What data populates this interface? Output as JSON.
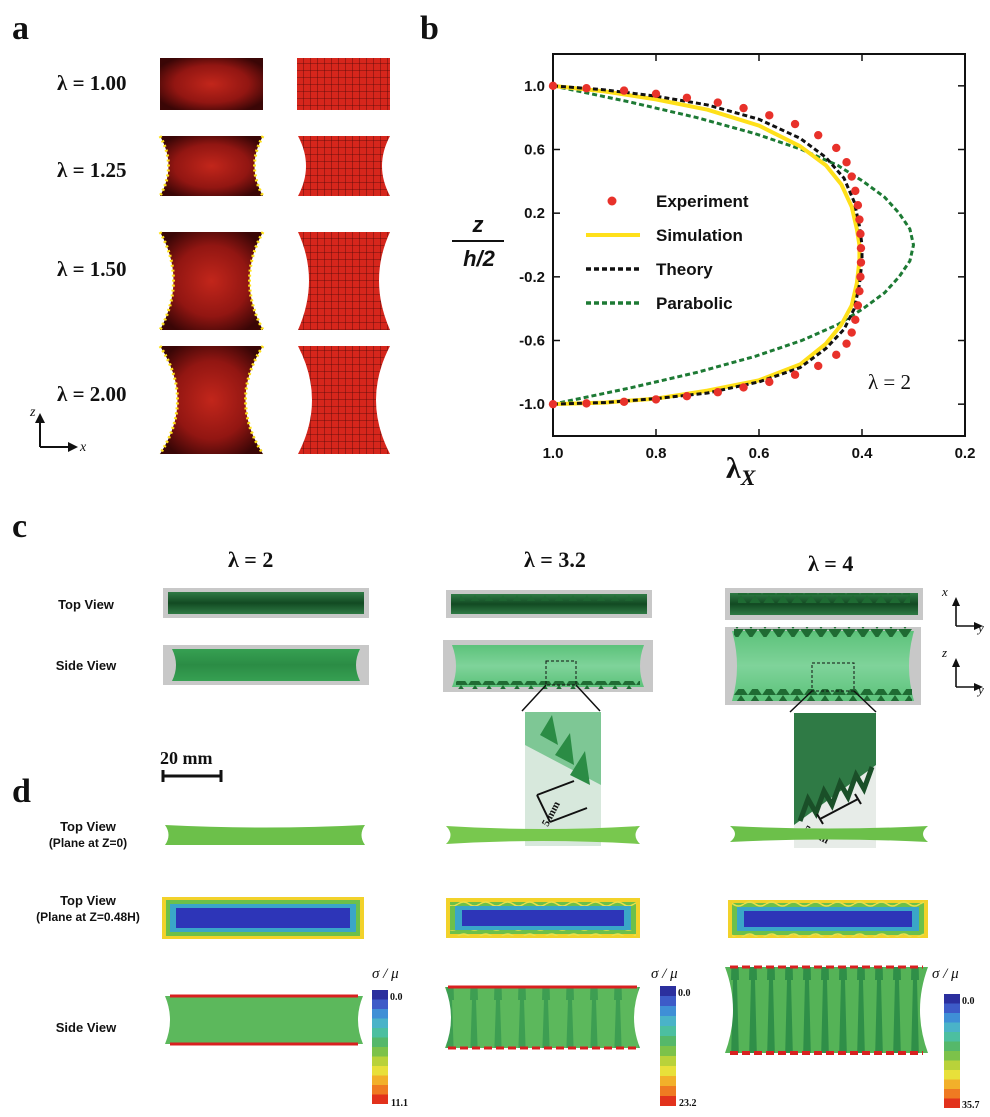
{
  "panels": {
    "a": "a",
    "b": "b",
    "c": "c",
    "d": "d"
  },
  "panel_a": {
    "lambdas": [
      "λ = 1.00",
      "λ = 1.25",
      "λ = 1.50",
      "λ = 2.00"
    ],
    "axis_z": "z",
    "axis_x": "x"
  },
  "chart_data": {
    "type": "line",
    "ylabel_num": "z",
    "ylabel_den": "h/2",
    "xlabel_main": "λ",
    "xlabel_sub": "X",
    "annotation": "λ = 2",
    "xlim": [
      1.0,
      0.2
    ],
    "ylim": [
      -1.2,
      1.2
    ],
    "xticks": [
      "1.0",
      "0.8",
      "0.6",
      "0.4",
      "0.2"
    ],
    "yticks": [
      "1.0",
      "0.6",
      "0.2",
      "-0.2",
      "-0.6",
      "-1.0"
    ],
    "legend_position": "center-left",
    "series": [
      {
        "name": "Experiment",
        "style": "markers",
        "color": "#e8312a",
        "x": [
          1.0,
          0.935,
          0.862,
          0.8,
          0.74,
          0.68,
          0.63,
          0.58,
          0.53,
          0.485,
          0.45,
          0.43,
          0.42,
          0.413,
          0.408,
          0.405,
          0.403,
          0.402,
          0.402,
          0.403,
          0.405,
          0.408,
          0.413,
          0.42,
          0.43,
          0.45,
          0.485,
          0.53,
          0.58,
          0.63,
          0.68,
          0.74,
          0.8,
          0.862,
          0.935,
          1.0
        ],
        "y": [
          1.0,
          0.985,
          0.97,
          0.95,
          0.925,
          0.895,
          0.86,
          0.815,
          0.76,
          0.69,
          0.61,
          0.52,
          0.43,
          0.34,
          0.25,
          0.16,
          0.07,
          -0.02,
          -0.11,
          -0.2,
          -0.29,
          -0.38,
          -0.47,
          -0.55,
          -0.62,
          -0.69,
          -0.76,
          -0.815,
          -0.86,
          -0.895,
          -0.925,
          -0.95,
          -0.97,
          -0.985,
          -0.995,
          -1.0
        ]
      },
      {
        "name": "Simulation",
        "style": "solid",
        "color": "#ffe01a",
        "x": [
          1.0,
          0.9,
          0.8,
          0.7,
          0.6,
          0.52,
          0.47,
          0.44,
          0.42,
          0.41,
          0.405,
          0.405,
          0.41,
          0.42,
          0.44,
          0.47,
          0.52,
          0.6,
          0.7,
          0.8,
          0.9,
          1.0
        ],
        "y": [
          1.0,
          0.965,
          0.915,
          0.85,
          0.75,
          0.62,
          0.5,
          0.38,
          0.24,
          0.1,
          0.0,
          -0.1,
          -0.24,
          -0.38,
          -0.5,
          -0.62,
          -0.75,
          -0.85,
          -0.915,
          -0.965,
          -0.99,
          -1.0
        ]
      },
      {
        "name": "Theory",
        "style": "dashed",
        "color": "#111111",
        "x": [
          1.0,
          0.9,
          0.8,
          0.7,
          0.6,
          0.52,
          0.47,
          0.435,
          0.415,
          0.405,
          0.4,
          0.4,
          0.405,
          0.415,
          0.435,
          0.47,
          0.52,
          0.6,
          0.7,
          0.8,
          0.9,
          1.0
        ],
        "y": [
          1.0,
          0.975,
          0.935,
          0.88,
          0.79,
          0.67,
          0.55,
          0.42,
          0.27,
          0.12,
          0.0,
          -0.1,
          -0.25,
          -0.4,
          -0.53,
          -0.65,
          -0.77,
          -0.86,
          -0.93,
          -0.965,
          -0.99,
          -1.0
        ]
      },
      {
        "name": "Parabolic",
        "style": "dashed",
        "color": "#1d7a34",
        "x": [
          1.0,
          0.853,
          0.72,
          0.608,
          0.517,
          0.447,
          0.398,
          0.356,
          0.328,
          0.307,
          0.3,
          0.307,
          0.328,
          0.356,
          0.398,
          0.447,
          0.517,
          0.608,
          0.72,
          0.853,
          1.0
        ],
        "y": [
          1.0,
          0.9,
          0.8,
          0.7,
          0.6,
          0.5,
          0.4,
          0.3,
          0.2,
          0.1,
          0.0,
          -0.1,
          -0.2,
          -0.3,
          -0.4,
          -0.5,
          -0.6,
          -0.7,
          -0.8,
          -0.9,
          -1.0
        ]
      }
    ]
  },
  "panel_c": {
    "lambdas": [
      "λ = 2",
      "λ = 3.2",
      "λ = 4"
    ],
    "row_top": "Top View",
    "row_side": "Side View",
    "scale_bar": "20 mm",
    "inset_scale": "5 mm",
    "axes_top": [
      "x",
      "y"
    ],
    "axes_side": [
      "z",
      "y"
    ]
  },
  "panel_d": {
    "row1": [
      "Top View",
      "(Plane at Z=0)"
    ],
    "row2": [
      "Top View",
      "(Plane at Z=0.48H)"
    ],
    "row3": "Side View",
    "colorbar_label": "σ / μ",
    "colorbars": [
      {
        "min": "0.0",
        "max": "11.1"
      },
      {
        "min": "0.0",
        "max": "23.2"
      },
      {
        "min": "0.0",
        "max": "35.7"
      }
    ]
  }
}
